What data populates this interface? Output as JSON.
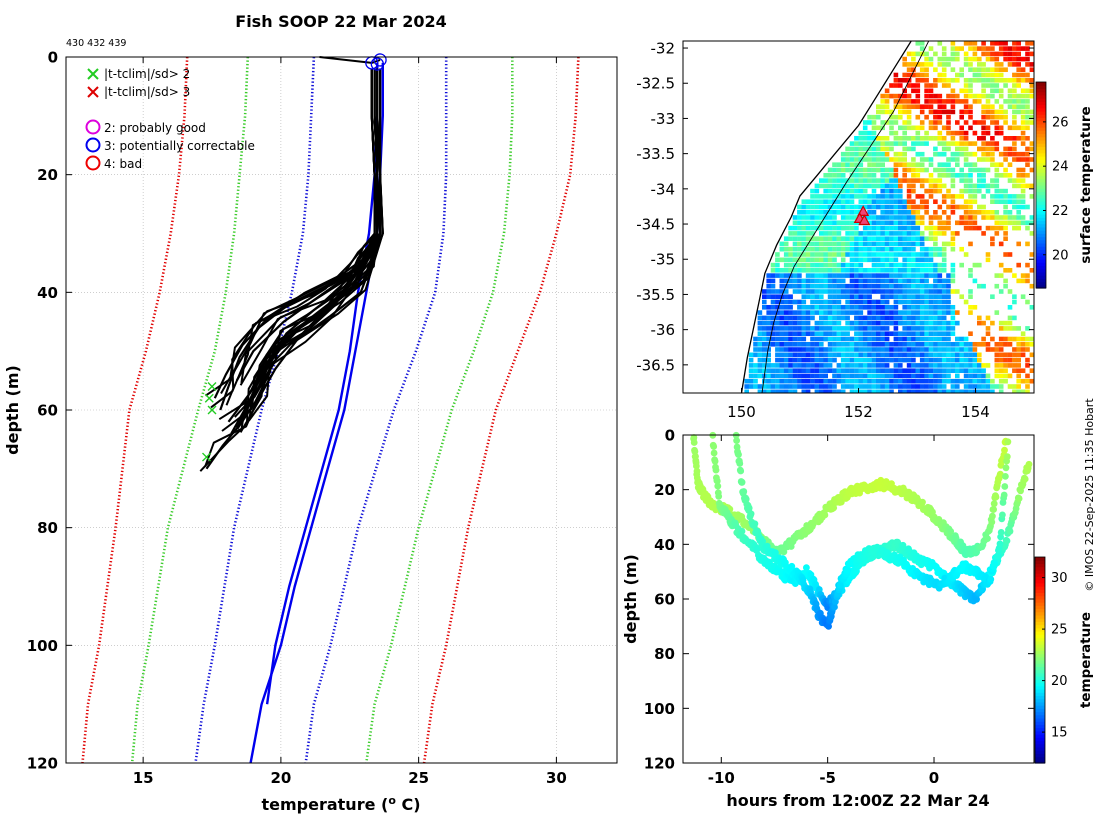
{
  "colors": {
    "grid": "#b0b0b0",
    "clim_red": "#e00000",
    "clim_green": "#3ccc2c",
    "clim_blue": "#1010d8",
    "profile": "#000000",
    "blue_profile": "#0000ee",
    "land": "#ffffff",
    "flag_x2": "#22cc22",
    "flag_x3": "#dd0000",
    "o2": "#dd00dd",
    "o3": "#0000ee",
    "o4": "#ee0000"
  },
  "chart_data": [
    {
      "type": "line",
      "name": "profile-plot",
      "title": "Fish SOOP 22 Mar 2024",
      "subtitle": "430 432 439",
      "xlabel": "temperature (",
      "xlabel_sup": "o",
      "xlabel_tail": " C)",
      "ylabel": "depth (m)",
      "xlim": [
        12.2,
        32.2
      ],
      "ylim": [
        0,
        120
      ],
      "y_reversed": true,
      "xticks": [
        15,
        20,
        25,
        30
      ],
      "yticks": [
        0,
        20,
        40,
        60,
        80,
        100,
        120
      ],
      "legend": {
        "position": "top-left",
        "entries": [
          {
            "marker": "x",
            "color_key": "flag_x2",
            "label": "|t-tclim|/sd> 2"
          },
          {
            "marker": "x",
            "color_key": "flag_x3",
            "label": "|t-tclim|/sd> 3"
          },
          {
            "marker": "o",
            "color_key": "o2",
            "label": "2: probably good"
          },
          {
            "marker": "o",
            "color_key": "o3",
            "label": "3: potentially correctable"
          },
          {
            "marker": "o",
            "color_key": "o4",
            "label": "4: bad"
          }
        ]
      },
      "series": [
        {
          "name": "clim-mean-minus-3sd",
          "style": "dotted",
          "color_key": "clim_red",
          "x": [
            16.6,
            16.5,
            16.3,
            16.0,
            15.6,
            15.1,
            14.5,
            14.0,
            13.4,
            13.0,
            12.8
          ],
          "y": [
            0,
            10,
            20,
            30,
            40,
            50,
            60,
            80,
            100,
            110,
            120
          ]
        },
        {
          "name": "clim-mean-minus-2sd",
          "style": "dotted",
          "color_key": "clim_green",
          "x": [
            18.8,
            18.7,
            18.5,
            18.3,
            18.0,
            17.6,
            17.0,
            15.9,
            15.2,
            14.8,
            14.6
          ],
          "y": [
            0,
            10,
            20,
            30,
            40,
            50,
            60,
            80,
            100,
            110,
            120
          ]
        },
        {
          "name": "clim-mean-minus-1sd",
          "style": "dotted",
          "color_key": "clim_blue",
          "x": [
            21.2,
            21.1,
            21.0,
            20.8,
            20.4,
            19.9,
            19.3,
            18.3,
            17.6,
            17.2,
            16.9
          ],
          "y": [
            0,
            10,
            20,
            30,
            40,
            50,
            60,
            80,
            100,
            110,
            120
          ]
        },
        {
          "name": "clim-mean-plus-1sd",
          "style": "dotted",
          "color_key": "clim_blue",
          "x": [
            26.0,
            26.0,
            26.0,
            25.9,
            25.6,
            24.9,
            24.1,
            22.8,
            21.8,
            21.2,
            20.9
          ],
          "y": [
            0,
            10,
            20,
            30,
            40,
            50,
            60,
            80,
            100,
            110,
            120
          ]
        },
        {
          "name": "clim-mean-plus-2sd",
          "style": "dotted",
          "color_key": "clim_green",
          "x": [
            28.4,
            28.4,
            28.3,
            28.1,
            27.7,
            27.0,
            26.2,
            25.0,
            24.0,
            23.4,
            23.1
          ],
          "y": [
            0,
            10,
            20,
            30,
            40,
            50,
            60,
            80,
            100,
            110,
            120
          ]
        },
        {
          "name": "clim-mean-plus-3sd",
          "style": "dotted",
          "color_key": "clim_red",
          "x": [
            30.8,
            30.7,
            30.5,
            30.0,
            29.4,
            28.6,
            27.8,
            26.8,
            26.0,
            25.5,
            25.2
          ],
          "y": [
            0,
            10,
            20,
            30,
            40,
            50,
            60,
            80,
            100,
            110,
            120
          ]
        },
        {
          "name": "flagged-profile-a",
          "style": "solid",
          "color_key": "blue_profile",
          "x": [
            23.5,
            23.5,
            23.4,
            23.2,
            22.8,
            22.5,
            22.1,
            21.5,
            20.9,
            20.3,
            19.8,
            19.5
          ],
          "y": [
            1,
            10,
            20,
            30,
            40,
            50,
            60,
            70,
            80,
            90,
            100,
            110
          ]
        },
        {
          "name": "flagged-profile-b",
          "style": "solid",
          "color_key": "blue_profile",
          "x": [
            23.7,
            23.7,
            23.6,
            23.5,
            23.1,
            22.7,
            22.3,
            21.7,
            21.1,
            20.5,
            20.0,
            19.3,
            18.9
          ],
          "y": [
            1,
            10,
            20,
            30,
            40,
            50,
            60,
            70,
            80,
            90,
            100,
            110,
            120
          ]
        },
        {
          "name": "accepted-profile-1",
          "style": "solid",
          "color_key": "profile",
          "x": [
            23.4,
            23.4,
            23.5,
            23.5,
            23.1,
            22.2,
            20.9,
            19.6,
            18.6,
            18.0,
            17.6
          ],
          "y": [
            2,
            10,
            20,
            30,
            34,
            37,
            40,
            44,
            49,
            54,
            58
          ]
        },
        {
          "name": "accepted-profile-2",
          "style": "solid",
          "color_key": "profile",
          "x": [
            23.3,
            23.3,
            23.4,
            23.4,
            22.8,
            21.6,
            20.3,
            19.2,
            18.5,
            18.1,
            17.8
          ],
          "y": [
            2,
            10,
            20,
            30,
            36,
            39,
            42,
            46,
            51,
            56,
            60
          ]
        },
        {
          "name": "accepted-profile-3",
          "style": "solid",
          "color_key": "profile",
          "x": [
            23.5,
            23.5,
            23.6,
            23.6,
            23.0,
            21.9,
            20.7,
            19.7,
            19.1,
            18.6,
            17.9,
            17.3
          ],
          "y": [
            2,
            10,
            20,
            30,
            38,
            42,
            46,
            51,
            56,
            62,
            66,
            70
          ]
        },
        {
          "name": "accepted-profile-4",
          "style": "solid",
          "color_key": "profile",
          "x": [
            23.4,
            23.4,
            23.5,
            23.5,
            22.6,
            21.5,
            20.4,
            19.6,
            19.0,
            18.4
          ],
          "y": [
            2,
            10,
            20,
            30,
            39,
            43,
            47,
            52,
            58,
            63
          ]
        },
        {
          "name": "accepted-profile-5",
          "style": "solid",
          "color_key": "profile",
          "x": [
            23.3,
            23.3,
            23.4,
            23.4,
            23.3,
            22.5,
            21.3,
            20.1,
            19.0,
            18.4
          ],
          "y": [
            2,
            10,
            20,
            30,
            33,
            37,
            41,
            45,
            50,
            55
          ]
        },
        {
          "name": "accepted-profile-6",
          "style": "solid",
          "color_key": "profile",
          "x": [
            23.6,
            23.6,
            23.6,
            23.7,
            22.9,
            21.8,
            20.6,
            19.8,
            19.2,
            18.7
          ],
          "y": [
            2,
            10,
            20,
            30,
            40,
            44,
            48,
            53,
            58,
            61
          ]
        },
        {
          "name": "accepted-profile-7",
          "style": "solid",
          "color_key": "profile",
          "x": [
            23.3,
            23.3,
            23.4,
            23.5,
            23.2,
            22.0,
            20.9,
            20.0,
            19.3,
            18.8,
            18.2
          ],
          "y": [
            2,
            10,
            20,
            30,
            36,
            41,
            45,
            49,
            54,
            59,
            64
          ]
        },
        {
          "name": "accepted-profile-8",
          "style": "solid",
          "color_key": "profile",
          "x": [
            23.5,
            23.5,
            23.5,
            23.6,
            23.1,
            22.3,
            21.2,
            20.2,
            19.5,
            18.9,
            18.1
          ],
          "y": [
            2,
            10,
            20,
            30,
            35,
            39,
            43,
            47,
            52,
            57,
            62
          ]
        }
      ],
      "markers": [
        {
          "type": "o",
          "color_key": "o3",
          "x": 23.3,
          "y": 1
        },
        {
          "type": "o",
          "color_key": "o3",
          "x": 23.6,
          "y": 0.5
        },
        {
          "type": "o",
          "color_key": "o3",
          "x": 23.5,
          "y": 1.2
        },
        {
          "type": "x",
          "color_key": "flag_x2",
          "x": 17.5,
          "y": 56
        },
        {
          "type": "x",
          "color_key": "flag_x2",
          "x": 17.4,
          "y": 58
        },
        {
          "type": "x",
          "color_key": "flag_x2",
          "x": 17.5,
          "y": 60
        },
        {
          "type": "x",
          "color_key": "flag_x2",
          "x": 17.3,
          "y": 68
        }
      ],
      "surface_tails": [
        {
          "x": [
            21.4,
            23.3
          ],
          "y": [
            0,
            1
          ]
        },
        {
          "x": [
            23.3,
            23.6
          ],
          "y": [
            1,
            0.5
          ]
        }
      ]
    },
    {
      "type": "heatmap",
      "name": "sst-map",
      "title": "",
      "xlabel": "",
      "ylabel": "",
      "xlim": [
        149.0,
        155.0
      ],
      "ylim": [
        -36.9,
        -31.9
      ],
      "xticks": [
        150,
        152,
        154
      ],
      "xtick_labels": [
        "150",
        "152",
        "154"
      ],
      "yticks": [
        -32,
        -32.5,
        -33,
        -33.5,
        -34,
        -34.5,
        -35,
        -35.5,
        -36,
        -36.5
      ],
      "ytick_labels": [
        "-32",
        "-32.5",
        "-33",
        "-33.5",
        "-34",
        "-34.5",
        "-35",
        "-35.5",
        "-36",
        "-36.5"
      ],
      "colorbar": {
        "label": "surface temperature",
        "range": [
          18.5,
          27.8
        ],
        "ticks": [
          20,
          22,
          24,
          26
        ]
      },
      "coastline": {
        "lon": [
          152.9,
          152.6,
          152.3,
          152.0,
          151.6,
          151.3,
          151.0,
          150.85,
          150.6,
          150.4,
          150.3,
          150.2,
          150.1,
          150.0
        ],
        "lat": [
          -31.9,
          -32.3,
          -32.7,
          -33.1,
          -33.5,
          -33.8,
          -34.1,
          -34.4,
          -34.8,
          -35.2,
          -35.6,
          -36.0,
          -36.4,
          -36.9
        ]
      },
      "track_contour": {
        "lon": [
          153.2,
          152.9,
          152.6,
          152.2,
          151.8,
          151.5,
          151.2,
          150.9,
          150.7,
          150.55,
          150.45,
          150.35
        ],
        "lat": [
          -31.9,
          -32.4,
          -32.9,
          -33.4,
          -33.9,
          -34.3,
          -34.7,
          -35.1,
          -35.5,
          -35.9,
          -36.3,
          -36.9
        ]
      },
      "stations": [
        {
          "lon": 152.08,
          "lat": -34.32
        },
        {
          "lon": 152.02,
          "lat": -34.42
        },
        {
          "lon": 152.1,
          "lat": -34.45
        }
      ]
    },
    {
      "type": "scatter",
      "name": "depth-time-section",
      "xlabel": "hours from 12:00Z 22 Mar 24",
      "ylabel": "depth (m)",
      "xlim": [
        -11.8,
        4.7
      ],
      "ylim": [
        0,
        120
      ],
      "y_reversed": true,
      "xticks": [
        -10,
        -5,
        0
      ],
      "yticks": [
        0,
        20,
        40,
        60,
        80,
        100,
        120
      ],
      "colorbar": {
        "label": "temperature",
        "range": [
          12,
          32
        ],
        "ticks": [
          15,
          20,
          25,
          30
        ]
      },
      "series": [
        {
          "name": "trace-a",
          "x": [
            -11.3,
            -11.1,
            -10.8,
            -10.4,
            -9.9,
            -9.3,
            -8.7,
            -8.0,
            -7.4,
            -6.8,
            -6.2,
            -5.6,
            -5.0,
            -4.5,
            -4.0,
            -3.5,
            -3.0,
            -2.5,
            -2.0,
            -1.4,
            -0.8,
            -0.2,
            0.4,
            1.0,
            1.5,
            2.0,
            2.6,
            3.0,
            3.4
          ],
          "depth": [
            1,
            18,
            22,
            26,
            27,
            30,
            33,
            39,
            43,
            40,
            36,
            32,
            27,
            24,
            21,
            20,
            19,
            18,
            19,
            21,
            24,
            28,
            33,
            38,
            43,
            42,
            36,
            18,
            1
          ],
          "temp": [
            22.5,
            22.8,
            23.0,
            23.0,
            22.9,
            22.7,
            22.5,
            22.0,
            21.6,
            21.8,
            22.2,
            22.4,
            22.7,
            23.0,
            23.2,
            23.3,
            23.3,
            23.4,
            23.3,
            23.1,
            22.9,
            22.6,
            22.2,
            21.6,
            21.0,
            21.2,
            21.9,
            23.0,
            23.4
          ]
        },
        {
          "name": "trace-b",
          "x": [
            -10.4,
            -10.1,
            -9.7,
            -9.2,
            -8.6,
            -8.0,
            -7.3,
            -6.6,
            -6.0,
            -5.5,
            -5.0,
            -4.5,
            -4.0,
            -3.5,
            -3.0,
            -2.4,
            -1.8,
            -1.2,
            -0.6,
            0.0,
            0.5,
            1.0,
            1.5,
            2.0,
            2.5,
            3.0,
            3.5,
            4.0,
            4.5
          ],
          "depth": [
            1,
            25,
            30,
            35,
            40,
            46,
            50,
            54,
            50,
            56,
            62,
            58,
            52,
            47,
            44,
            42,
            40,
            43,
            46,
            48,
            52,
            55,
            58,
            60,
            52,
            46,
            36,
            22,
            10
          ],
          "temp": [
            22.3,
            22.0,
            21.6,
            21.0,
            20.5,
            20.0,
            19.7,
            19.3,
            19.6,
            19.1,
            17.0,
            18.8,
            19.4,
            19.8,
            20.1,
            20.3,
            20.6,
            20.2,
            19.9,
            19.6,
            19.4,
            19.0,
            18.4,
            18.0,
            19.3,
            20.0,
            21.0,
            22.4,
            23.0
          ]
        },
        {
          "name": "trace-c",
          "x": [
            -9.3,
            -9.0,
            -8.6,
            -8.1,
            -7.5,
            -6.9,
            -6.3,
            -5.8,
            -5.4,
            -5.0,
            -4.7,
            -4.4,
            -4.0,
            -3.4,
            -2.8,
            -2.2,
            -1.6,
            -1.0,
            -0.4,
            0.2,
            0.8,
            1.4,
            2.0,
            2.6,
            3.1,
            3.5
          ],
          "depth": [
            1,
            20,
            30,
            40,
            44,
            48,
            52,
            58,
            66,
            70,
            62,
            54,
            48,
            44,
            42,
            44,
            46,
            50,
            53,
            55,
            52,
            48,
            50,
            54,
            40,
            1
          ],
          "temp": [
            22.0,
            21.5,
            21.0,
            20.4,
            20.0,
            19.6,
            19.2,
            18.5,
            17.4,
            16.8,
            17.8,
            19.0,
            19.5,
            19.9,
            20.2,
            20.0,
            19.8,
            19.4,
            19.0,
            18.8,
            19.2,
            19.5,
            19.3,
            19.0,
            20.4,
            23.0
          ]
        }
      ]
    }
  ],
  "footer": {
    "credit": "© IMOS 22-Sep-2025 11:35 Hobart"
  }
}
